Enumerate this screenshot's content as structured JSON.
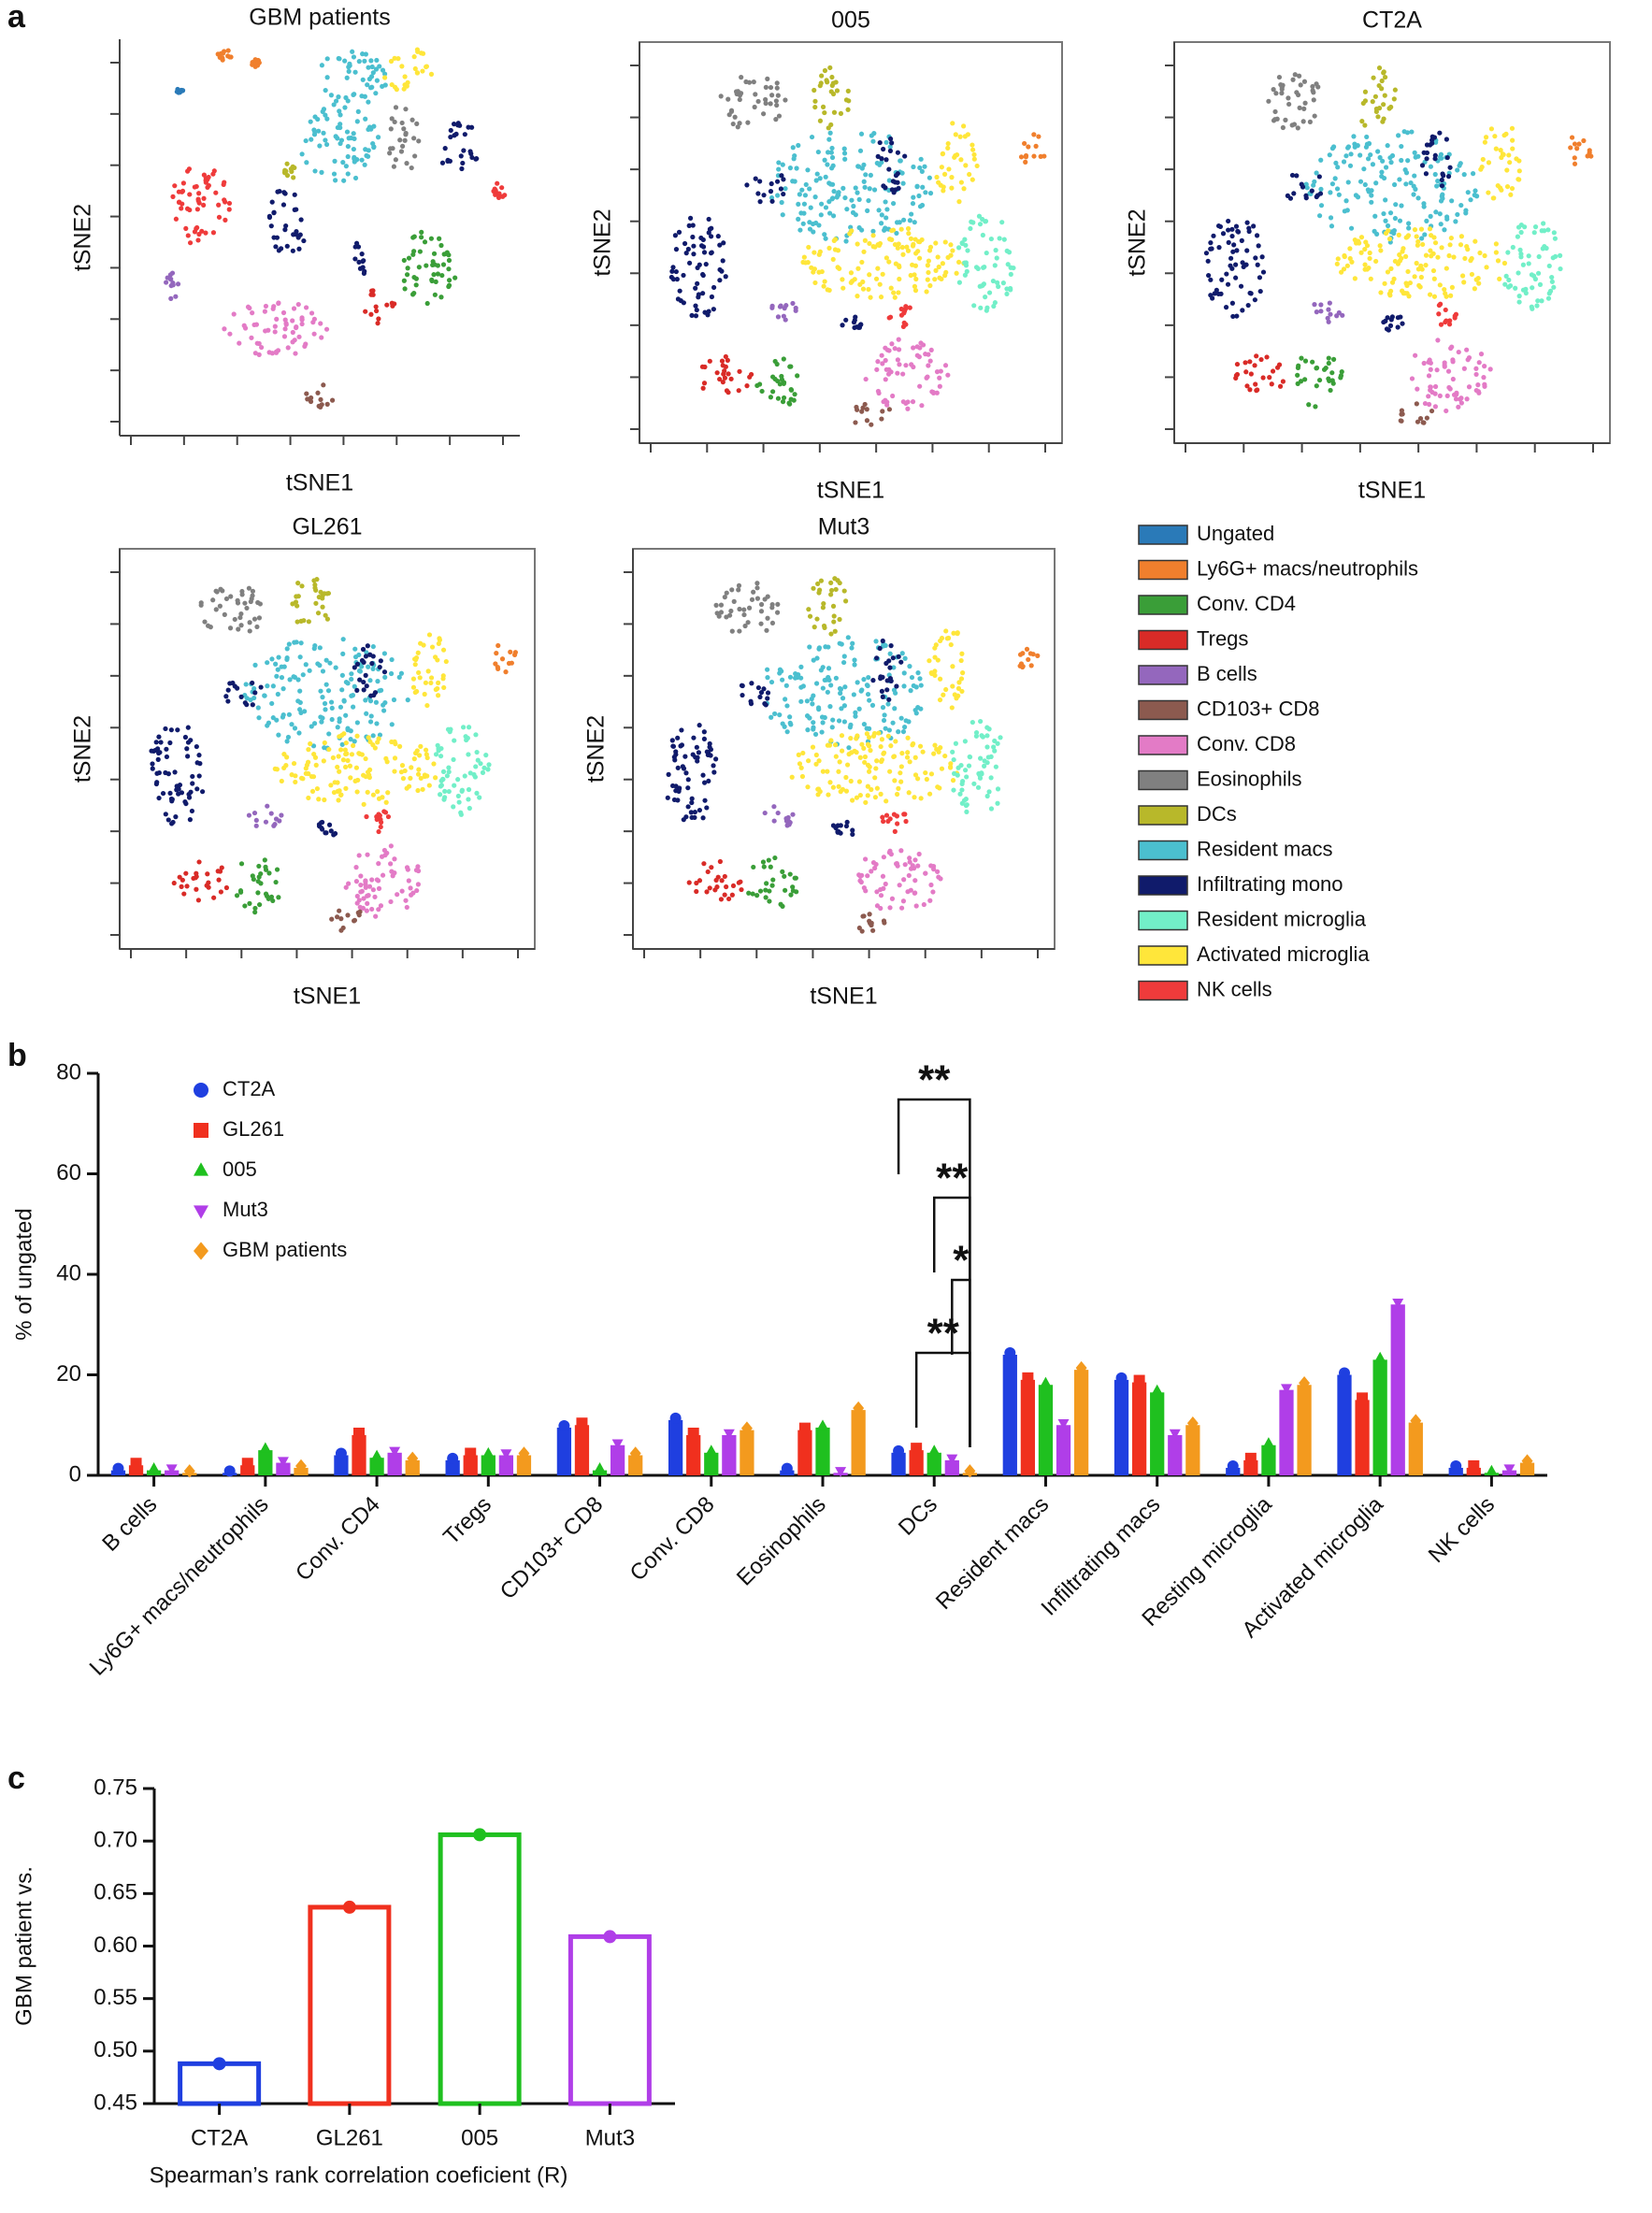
{
  "chart_data": [
    {
      "type": "tsne",
      "panel": "a",
      "plots": [
        {
          "title": "GBM patients"
        },
        {
          "title": "005"
        },
        {
          "title": "CT2A"
        },
        {
          "title": "GL261"
        },
        {
          "title": "Mut3"
        }
      ],
      "xlabel": "tSNE1",
      "ylabel": "tSNE2",
      "legend": [
        {
          "name": "Ungated",
          "color": "#2a7ab8"
        },
        {
          "name": "Ly6G+ macs/neutrophils",
          "color": "#f07f2d"
        },
        {
          "name": "Conv. CD4",
          "color": "#3a9e38"
        },
        {
          "name": "Tregs",
          "color": "#d92b27"
        },
        {
          "name": "B cells",
          "color": "#9467bd"
        },
        {
          "name": "CD103+ CD8",
          "color": "#8c5a4f"
        },
        {
          "name": "Conv. CD8",
          "color": "#e37bc6"
        },
        {
          "name": "Eosinophils",
          "color": "#808080"
        },
        {
          "name": "DCs",
          "color": "#b8b82a"
        },
        {
          "name": "Resident macs",
          "color": "#4bbfcf"
        },
        {
          "name": "Infiltrating mono",
          "color": "#101b6b"
        },
        {
          "name": "Resident microglia",
          "color": "#72efc8"
        },
        {
          "name": "Activated microglia",
          "color": "#ffe63a"
        },
        {
          "name": "NK cells",
          "color": "#ef3b3b"
        }
      ]
    },
    {
      "type": "bar",
      "panel": "b",
      "ylabel": "% of ungated",
      "categories": [
        "B cells",
        "Ly6G+ macs/neutrophils",
        "Conv. CD4",
        "Tregs",
        "CD103+ CD8",
        "Conv. CD8",
        "Eosinophils",
        "DCs",
        "Resident macs",
        "Infiltrating macs",
        "Resting microglia",
        "Activated microglia",
        "NK cells"
      ],
      "series": [
        {
          "name": "CT2A",
          "color": "#1f3fe0",
          "marker": "circle",
          "values": [
            1,
            0.5,
            4,
            3,
            9.5,
            11,
            1,
            4.5,
            24,
            19,
            1.5,
            20,
            1.5
          ]
        },
        {
          "name": "GL261",
          "color": "#f0301e",
          "marker": "square",
          "values": [
            2,
            2,
            8,
            4,
            10,
            8,
            9,
            5,
            19,
            18.5,
            3,
            15,
            1.5
          ]
        },
        {
          "name": "005",
          "color": "#1fc01f",
          "marker": "triangle",
          "values": [
            1,
            5,
            3.5,
            4,
            1,
            4.5,
            9.5,
            4.5,
            18,
            16.5,
            6,
            23,
            0.5
          ]
        },
        {
          "name": "Mut3",
          "color": "#b03ee8",
          "marker": "triangle-down",
          "values": [
            1,
            2.5,
            4.5,
            4,
            6,
            8,
            0.5,
            3,
            10,
            8,
            17,
            34,
            1
          ]
        },
        {
          "name": "GBM patients",
          "color": "#f39a1e",
          "marker": "diamond",
          "values": [
            0.5,
            1.5,
            3,
            4,
            4,
            9,
            13,
            0.5,
            21,
            10,
            18,
            10.5,
            2.5
          ]
        }
      ],
      "ylim": [
        0,
        80
      ],
      "yticks": [
        0,
        20,
        40,
        60,
        80
      ],
      "annotations": [
        "**",
        "**",
        "*",
        "**"
      ]
    },
    {
      "type": "bar",
      "panel": "c",
      "ylabel": "GBM patient vs.",
      "xlabel": "Spearman’s rank correlation coeficient (R)",
      "categories": [
        "CT2A",
        "GL261",
        "005",
        "Mut3"
      ],
      "values": [
        0.488,
        0.637,
        0.706,
        0.609
      ],
      "colors": [
        "#1f3fe0",
        "#f0301e",
        "#1fc01f",
        "#b03ee8"
      ],
      "ylim": [
        0.45,
        0.75
      ],
      "yticks": [
        0.45,
        {
          "value": 0.5,
          "label": "0.50"
        },
        0.55,
        {
          "value": 0.6,
          "label": "0.60"
        },
        0.65,
        {
          "value": 0.7,
          "label": "0.70"
        },
        0.75
      ]
    }
  ]
}
